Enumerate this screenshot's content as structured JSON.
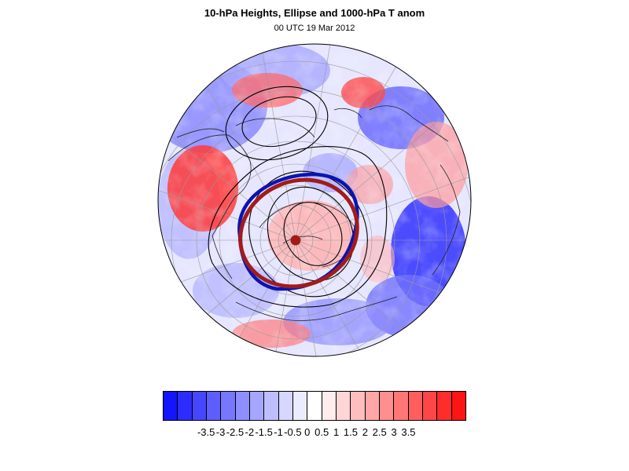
{
  "header": {
    "title": "10-hPa Heights, Ellipse and 1000-hPa T anom",
    "subtitle": "00 UTC 19 Mar 2012"
  },
  "colors": {
    "cold": "#0000ff",
    "warm": "#ff0000",
    "ellipse": "#a01c1c",
    "vortex_edge": "#0a14b4",
    "contour": "#000000"
  },
  "colorbar": {
    "colors": [
      "#1414ff",
      "#2c2cff",
      "#4646ff",
      "#5e5eff",
      "#7676ff",
      "#8e8eff",
      "#a6a6ff",
      "#bebeff",
      "#d6d6ff",
      "#ececff",
      "#ffffff",
      "#ffecec",
      "#ffd6d6",
      "#ffbebe",
      "#ffa6a6",
      "#ff8e8e",
      "#ff7676",
      "#ff5e5e",
      "#ff4646",
      "#ff2c2c",
      "#ff1414"
    ],
    "tick_labels": [
      "-3.5",
      "-3",
      "-2.5",
      "-2",
      "-1.5",
      "-1",
      "-0.5",
      "0",
      "0.5",
      "1",
      "1.5",
      "2",
      "2.5",
      "3",
      "3.5"
    ]
  }
}
